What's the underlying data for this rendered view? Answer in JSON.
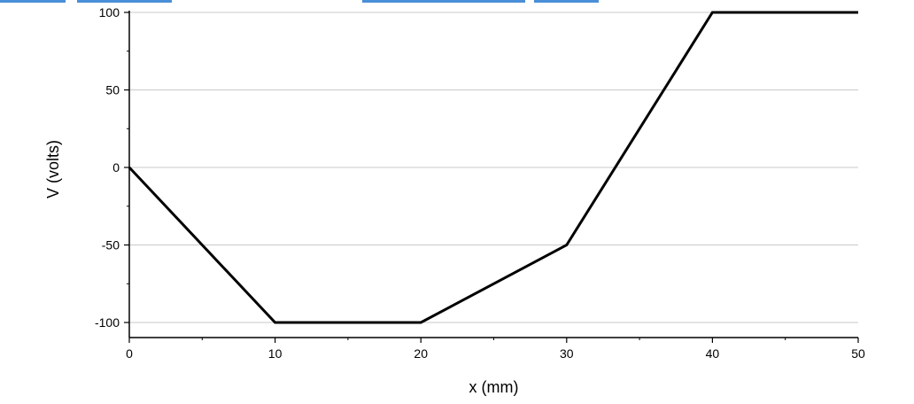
{
  "chart_data": {
    "type": "line",
    "title": "",
    "xlabel": "x (mm)",
    "ylabel": "V  (volts)",
    "xlim": [
      0,
      50
    ],
    "ylim": [
      -100,
      100
    ],
    "grid": "horizontal",
    "x_ticks": [
      "0",
      "10",
      "20",
      "30",
      "40",
      "50"
    ],
    "y_ticks": [
      "100",
      "50",
      "0",
      "-50",
      "-100"
    ],
    "series": [
      {
        "x": [
          0,
          10,
          20,
          30,
          40,
          50
        ],
        "values": [
          0,
          -100,
          -100,
          -50,
          100,
          100
        ],
        "color": "#000000"
      }
    ]
  },
  "colors": {
    "line": "#000000",
    "grid": "#c8c8c8",
    "axis": "#000000",
    "top_fragment": "#4a8fd8"
  }
}
